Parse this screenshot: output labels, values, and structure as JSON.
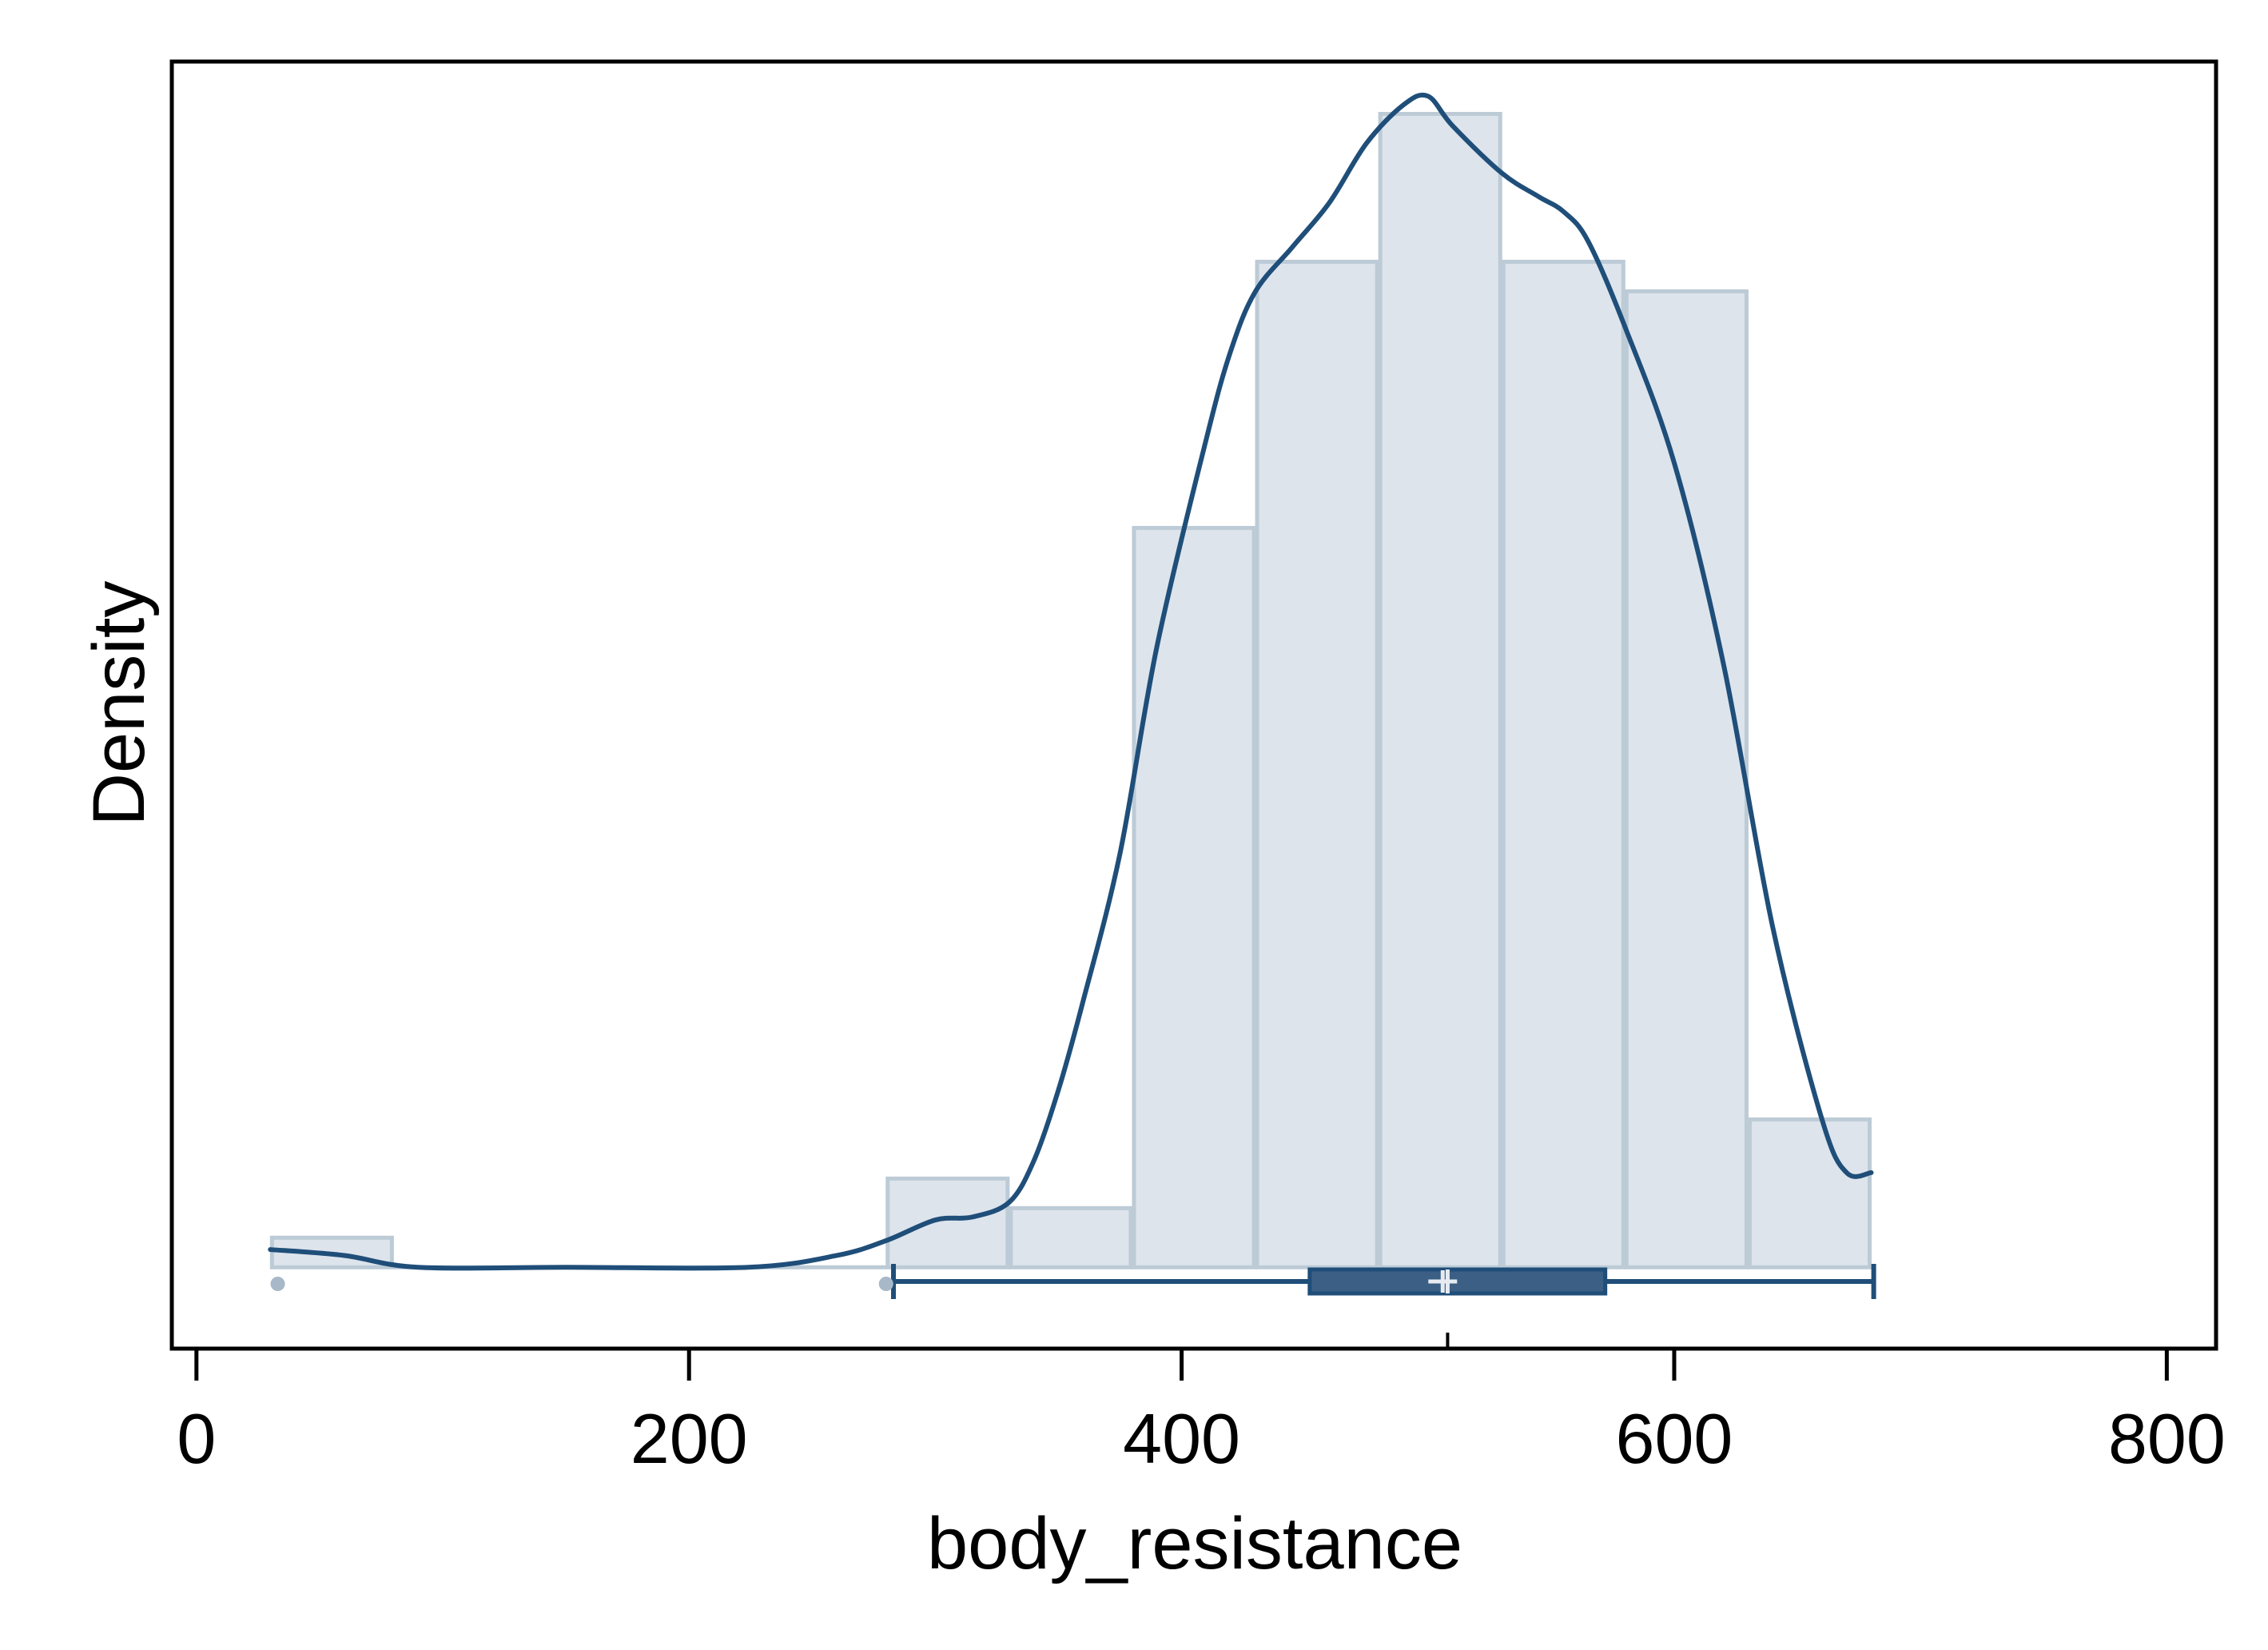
{
  "chart_data": {
    "type": "histogram",
    "xlabel": "body_resistance",
    "ylabel": "Density",
    "xlim": [
      -10,
      820
    ],
    "ylim": [
      -0.000275,
      0.004077
    ],
    "xticks": [
      0,
      200,
      400,
      600,
      800
    ],
    "y_tick_labels_shown": false,
    "grid": false,
    "legend": "none",
    "bins": [
      {
        "start": 30,
        "end": 80,
        "density": 0.0001
      },
      {
        "start": 80,
        "end": 130,
        "density": 0
      },
      {
        "start": 130,
        "end": 180,
        "density": 0
      },
      {
        "start": 180,
        "end": 230,
        "density": 0
      },
      {
        "start": 230,
        "end": 280,
        "density": 0
      },
      {
        "start": 280,
        "end": 330,
        "density": 0.0003
      },
      {
        "start": 330,
        "end": 380,
        "density": 0.0002
      },
      {
        "start": 380,
        "end": 430,
        "density": 0.0025
      },
      {
        "start": 430,
        "end": 480,
        "density": 0.0034
      },
      {
        "start": 480,
        "end": 530,
        "density": 0.0039
      },
      {
        "start": 530,
        "end": 580,
        "density": 0.0034
      },
      {
        "start": 580,
        "end": 630,
        "density": 0.0033
      },
      {
        "start": 630,
        "end": 680,
        "density": 0.0005
      }
    ],
    "kde": {
      "x": [
        30,
        60,
        90,
        150,
        224,
        260,
        280,
        300,
        315,
        330,
        340,
        350,
        360,
        375,
        390,
        410,
        420,
        430,
        445,
        460,
        475,
        490,
        500,
        510,
        530,
        545,
        555,
        565,
        580,
        600,
        620,
        640,
        660,
        670,
        680
      ],
      "y": [
        6e-05,
        4e-05,
        0.0,
        0.0,
        0.0,
        4e-05,
        9e-05,
        0.00016,
        0.00017,
        0.00022,
        0.00036,
        0.0006,
        0.0009,
        0.0014,
        0.0021,
        0.0028,
        0.0031,
        0.0033,
        0.00345,
        0.0036,
        0.0038,
        0.00393,
        0.00396,
        0.00386,
        0.0037,
        0.00362,
        0.00357,
        0.00347,
        0.00318,
        0.00272,
        0.00204,
        0.00115,
        0.0005,
        0.00032,
        0.00032
      ]
    },
    "boxplot": {
      "whisker_low": 283,
      "q1": 452,
      "median": 508,
      "mean": 506,
      "q3": 572,
      "whisker_high": 681,
      "outliers": [
        33,
        280
      ]
    },
    "colors": {
      "bar_fill": "#dde4ec",
      "bar_edge": "#bccbd6",
      "line": "#1f4e79",
      "box_fill": "#3b5f85",
      "outlier": "#a7b8c8",
      "frame": "#000000"
    }
  }
}
